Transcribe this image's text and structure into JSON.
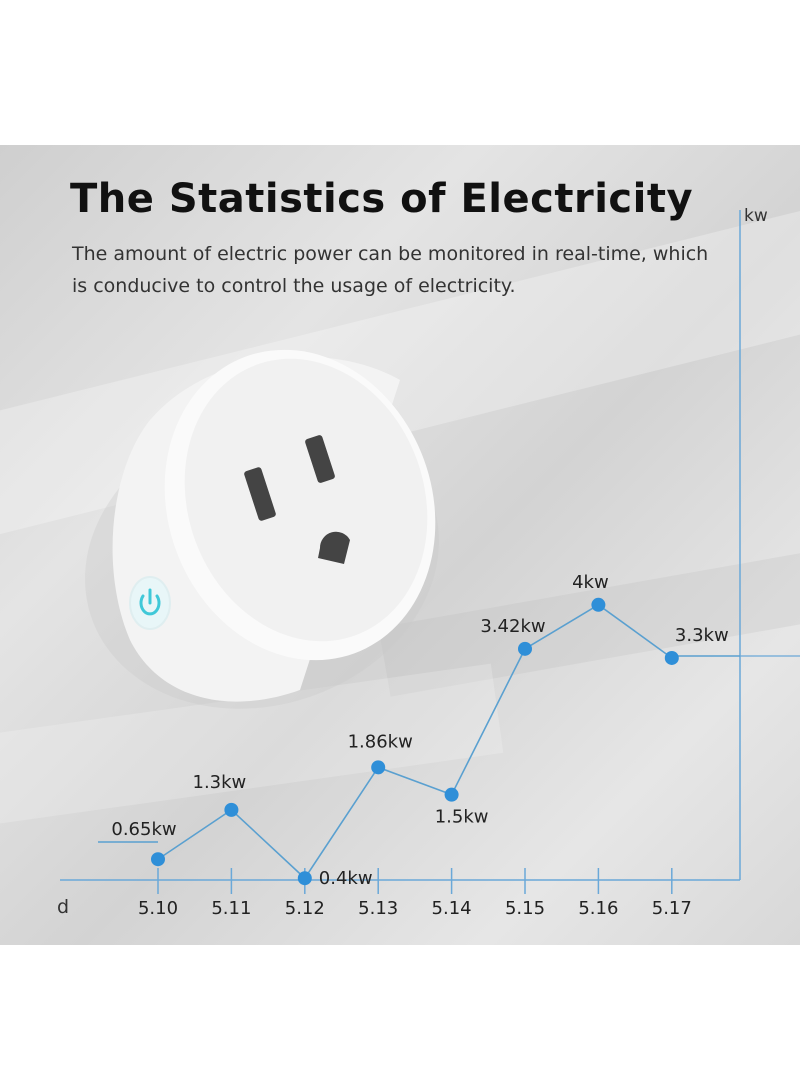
{
  "title": "The Statistics of Electricity",
  "subtitle": "The amount of electric power can be monitored in real-time, which is conducive to control the usage of electricity.",
  "icons": {
    "product": "smart-plug-icon",
    "power": "power-icon"
  },
  "colors": {
    "line": "#5aa0d0",
    "point": "#2f8fd8",
    "axis": "#6aa8d8",
    "power_glow": "#3fc8d8"
  },
  "chart_data": {
    "type": "line",
    "title": "",
    "xlabel": "d",
    "ylabel": "kw",
    "categories": [
      "5.10",
      "5.11",
      "5.12",
      "5.13",
      "5.14",
      "5.15",
      "5.16",
      "5.17"
    ],
    "values": [
      0.65,
      1.3,
      0.4,
      1.86,
      1.5,
      3.42,
      4,
      3.3
    ],
    "data_labels": [
      "0.65kw",
      "1.3kw",
      "0.4kw",
      "1.86kw",
      "1.5kw",
      "3.42kw",
      "4kw",
      "3.3kw"
    ],
    "ylim": [
      0,
      4
    ],
    "grid": false,
    "legend": "none"
  }
}
